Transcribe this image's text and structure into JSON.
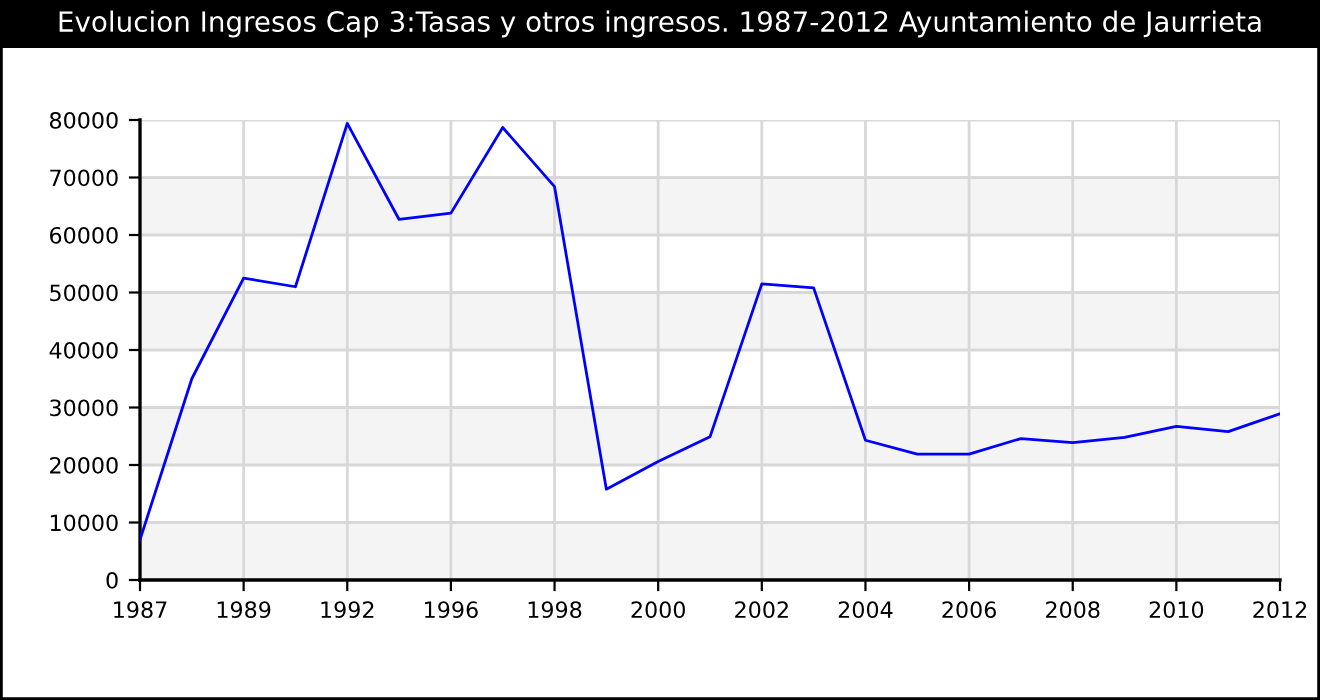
{
  "chart_data": {
    "type": "line",
    "title": "Evolucion Ingresos Cap 3:Tasas y otros ingresos. 1987-2012 Ayuntamiento de Jaurrieta",
    "categories": [
      "1987",
      null,
      "1989",
      null,
      "1992",
      null,
      "1996",
      null,
      "1998",
      null,
      "2000",
      null,
      "2002",
      null,
      "2004",
      null,
      "2006",
      null,
      "2008",
      null,
      "2010",
      null,
      "2012"
    ],
    "series": [
      {
        "color": "#0000ff",
        "values": [
          7000,
          35000,
          52500,
          51000,
          79400,
          62700,
          63800,
          78700,
          68400,
          15800,
          20600,
          24900,
          51500,
          50800,
          24300,
          21900,
          21900,
          24600,
          23900,
          24800,
          26700,
          25800,
          28900
        ]
      }
    ],
    "ylim": [
      0,
      80000
    ],
    "yticks": [
      0,
      10000,
      20000,
      30000,
      40000,
      50000,
      60000,
      70000,
      80000
    ],
    "bands": [
      {
        "axis": "y",
        "from": 0,
        "to": 10000,
        "color": "#f4f4f4"
      },
      {
        "axis": "y",
        "from": 20000,
        "to": 30000,
        "color": "#f4f4f4"
      },
      {
        "axis": "y",
        "from": 40000,
        "to": 50000,
        "color": "#f4f4f4"
      },
      {
        "axis": "y",
        "from": 60000,
        "to": 70000,
        "color": "#f4f4f4"
      }
    ],
    "grid": true,
    "marker": "none",
    "line_style": "solid"
  }
}
